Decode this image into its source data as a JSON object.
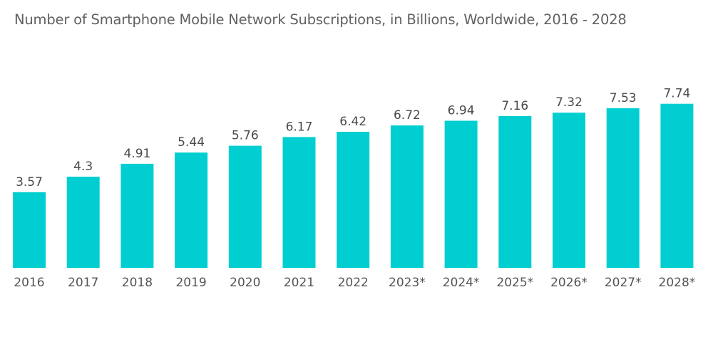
{
  "chart_data": {
    "type": "bar",
    "title": "Number of Smartphone Mobile Network Subscriptions, in Billions, Worldwide, 2016 - 2028",
    "categories": [
      "2016",
      "2017",
      "2018",
      "2019",
      "2020",
      "2021",
      "2022",
      "2023*",
      "2024*",
      "2025*",
      "2026*",
      "2027*",
      "2028*"
    ],
    "values": [
      3.57,
      4.3,
      4.91,
      5.44,
      5.76,
      6.17,
      6.42,
      6.72,
      6.94,
      7.16,
      7.32,
      7.53,
      7.74
    ],
    "data_labels": [
      "3.57",
      "4.3",
      "4.91",
      "5.44",
      "5.76",
      "6.17",
      "6.42",
      "6.72",
      "6.94",
      "7.16",
      "7.32",
      "7.53",
      "7.74"
    ],
    "xlabel": "",
    "ylabel": "",
    "ylim": [
      0,
      8
    ],
    "grid": false,
    "legend": "none",
    "bar_color": "#00ced1"
  }
}
